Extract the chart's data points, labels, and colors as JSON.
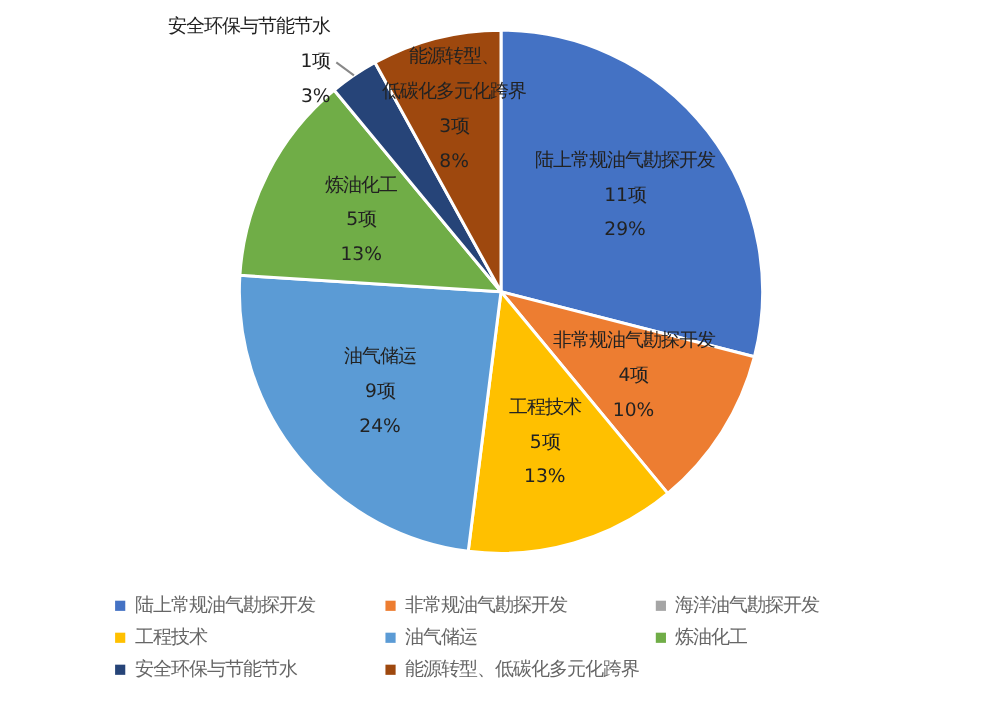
{
  "chart_data": {
    "type": "pie",
    "categories": [
      "陆上常规油气勘探开发",
      "非常规油气勘探开发",
      "海洋油气勘探开发",
      "工程技术",
      "油气储运",
      "炼油化工",
      "安全环保与节能节水",
      "能源转型、低碳化多元化跨界"
    ],
    "values": [
      29,
      10,
      null,
      13,
      24,
      13,
      3,
      8
    ],
    "value_labels": [
      "11项\n29%",
      "4项\n10%",
      null,
      "5项\n13%",
      "9项\n24%",
      "5项\n13%",
      "1项\n3%",
      "3项\n8%"
    ],
    "colors": [
      "#4472c4",
      "#ed7d31",
      "#a5a5a5",
      "#ffc000",
      "#5b9bd5",
      "#70ad47",
      "#264478",
      "#9e480e"
    ],
    "legend": "bottom"
  }
}
